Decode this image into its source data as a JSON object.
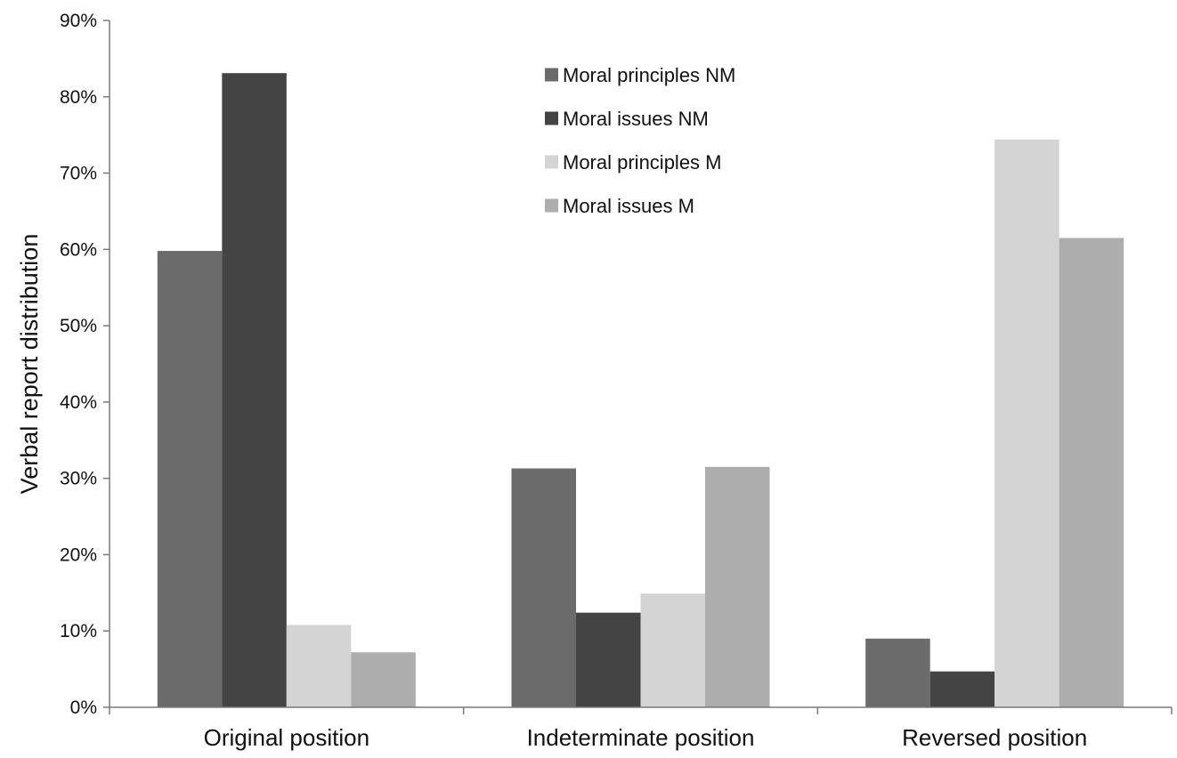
{
  "chart_data": {
    "type": "bar",
    "title": "",
    "xlabel": "",
    "ylabel": "Verbal report distribution",
    "ylim": [
      0,
      90
    ],
    "y_ticks": [
      0,
      10,
      20,
      30,
      40,
      50,
      60,
      70,
      80,
      90
    ],
    "y_tick_labels": [
      "0%",
      "10%",
      "20%",
      "30%",
      "40%",
      "50%",
      "60%",
      "70%",
      "80%",
      "90%"
    ],
    "grid": false,
    "legend_position": "top-center",
    "categories": [
      "Original position",
      "Indeterminate position",
      "Reversed position"
    ],
    "series": [
      {
        "name": "Moral principles NM",
        "color": "#6b6b6b",
        "values": [
          59.8,
          31.3,
          9.0
        ]
      },
      {
        "name": "Moral issues NM",
        "color": "#444444",
        "values": [
          83.1,
          12.4,
          4.7
        ]
      },
      {
        "name": "Moral principles M",
        "color": "#d4d4d4",
        "values": [
          10.8,
          14.9,
          74.4
        ]
      },
      {
        "name": "Moral issues M",
        "color": "#adadad",
        "values": [
          7.2,
          31.5,
          61.5
        ]
      }
    ]
  }
}
